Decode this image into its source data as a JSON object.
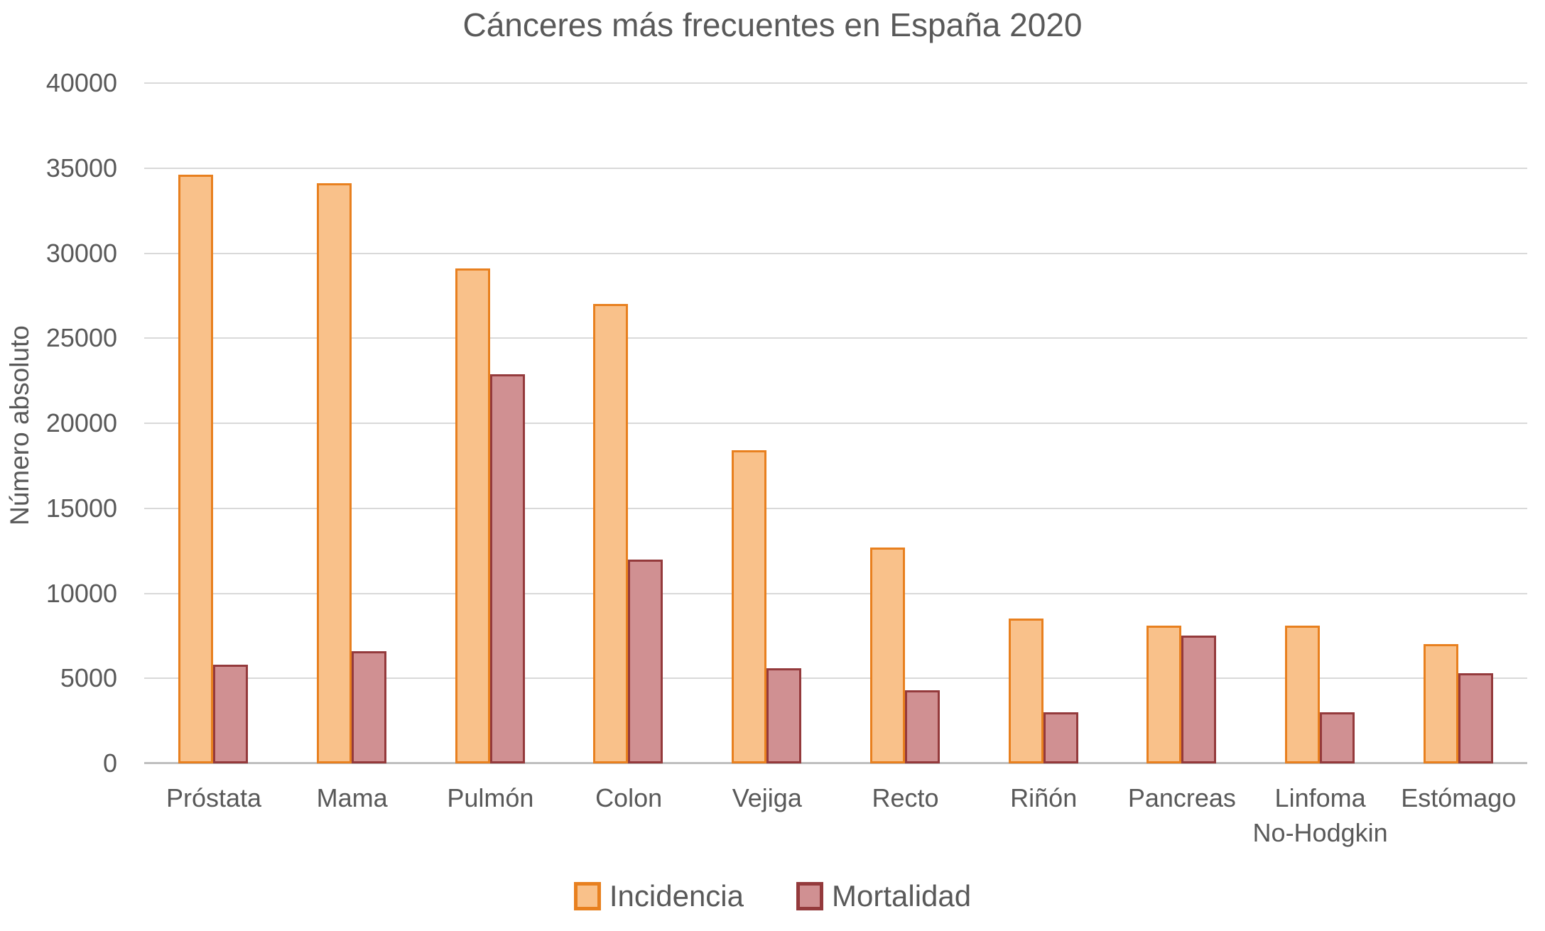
{
  "title": "Cánceres más frecuentes en España 2020",
  "y_axis": {
    "label": "Número absoluto",
    "ticks": [
      0,
      5000,
      10000,
      15000,
      20000,
      25000,
      30000,
      35000,
      40000
    ]
  },
  "legend": {
    "items": [
      "Incidencia",
      "Mortalidad"
    ],
    "position": "bottom"
  },
  "colors": {
    "incidencia_fill": "#F9C18A",
    "incidencia_border": "#E8801F",
    "mortalidad_fill": "#D09092",
    "mortalidad_border": "#943A3C",
    "gridline": "#D9D9D9",
    "axis_line": "#BFBFBF",
    "text": "#595959",
    "background": "#FFFFFF"
  },
  "chart_data": {
    "type": "bar",
    "title": "Cánceres más frecuentes en España 2020",
    "xlabel": "",
    "ylabel": "Número absoluto",
    "ylim": [
      0,
      40000
    ],
    "ytick_step": 5000,
    "yticks": [
      0,
      5000,
      10000,
      15000,
      20000,
      25000,
      30000,
      35000,
      40000
    ],
    "grid": true,
    "legend_position": "bottom",
    "categories": [
      "Próstata",
      "Mama",
      "Pulmón",
      "Colon",
      "Vejiga",
      "Recto",
      "Riñón",
      "Pancreas",
      "Linfoma No-Hodgkin",
      "Estómago"
    ],
    "series": [
      {
        "name": "Incidencia",
        "fill": "#F9C18A",
        "border": "#E8801F",
        "values": [
          34600,
          34100,
          29100,
          27000,
          18400,
          12700,
          8500,
          8100,
          8100,
          7000
        ]
      },
      {
        "name": "Mortalidad",
        "fill": "#D09092",
        "border": "#943A3C",
        "values": [
          5800,
          6600,
          22900,
          12000,
          5600,
          4300,
          3000,
          7500,
          3000,
          5300
        ]
      }
    ]
  }
}
